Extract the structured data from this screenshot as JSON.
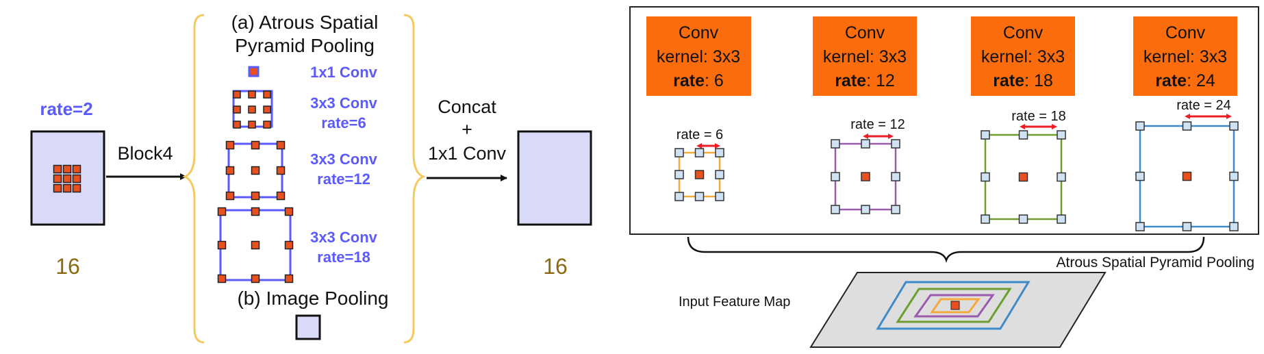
{
  "left": {
    "input_rate": "rate=2",
    "input_size": "16",
    "block_label": "Block4",
    "aspp_title_line1": "(a) Atrous Spatial",
    "aspp_title_line2": "Pyramid Pooling",
    "branches": [
      {
        "line1": "1x1 Conv",
        "line2": ""
      },
      {
        "line1": "3x3 Conv",
        "line2": "rate=6"
      },
      {
        "line1": "3x3 Conv",
        "line2": "rate=12"
      },
      {
        "line1": "3x3 Conv",
        "line2": "rate=18"
      }
    ],
    "image_pooling": "(b) Image Pooling",
    "concat_line1": "Concat",
    "concat_line2": "+",
    "concat_line3": "1x1 Conv",
    "output_size": "16"
  },
  "right": {
    "conv_boxes": [
      {
        "title": "Conv",
        "kernel": "kernel: 3x3",
        "rate_key": "rate",
        "rate_val": ": 6"
      },
      {
        "title": "Conv",
        "kernel": "kernel: 3x3",
        "rate_key": "rate",
        "rate_val": ": 12"
      },
      {
        "title": "Conv",
        "kernel": "kernel: 3x3",
        "rate_key": "rate",
        "rate_val": ": 18"
      },
      {
        "title": "Conv",
        "kernel": "kernel: 3x3",
        "rate_key": "rate",
        "rate_val": ": 24"
      }
    ],
    "rate_labels": [
      "rate = 6",
      "rate = 12",
      "rate = 18",
      "rate = 24"
    ],
    "aspp_label": "Atrous Spatial Pyramid Pooling",
    "input_label": "Input Feature Map"
  },
  "colors": {
    "blue_text": "#5a5aff",
    "brown_text": "#8b6914",
    "orange_box": "#fb6d0c",
    "dot_red": "#e8501f",
    "bracket_yellow": "#f4c95d",
    "lavender_fill": "#d9d9f8",
    "arrow_red": "#ee1c24",
    "rate6_border": "#f4a93a",
    "rate12_border": "#9b5ab0",
    "rate18_border": "#6e9e2e",
    "rate24_border": "#3e8ac8"
  }
}
